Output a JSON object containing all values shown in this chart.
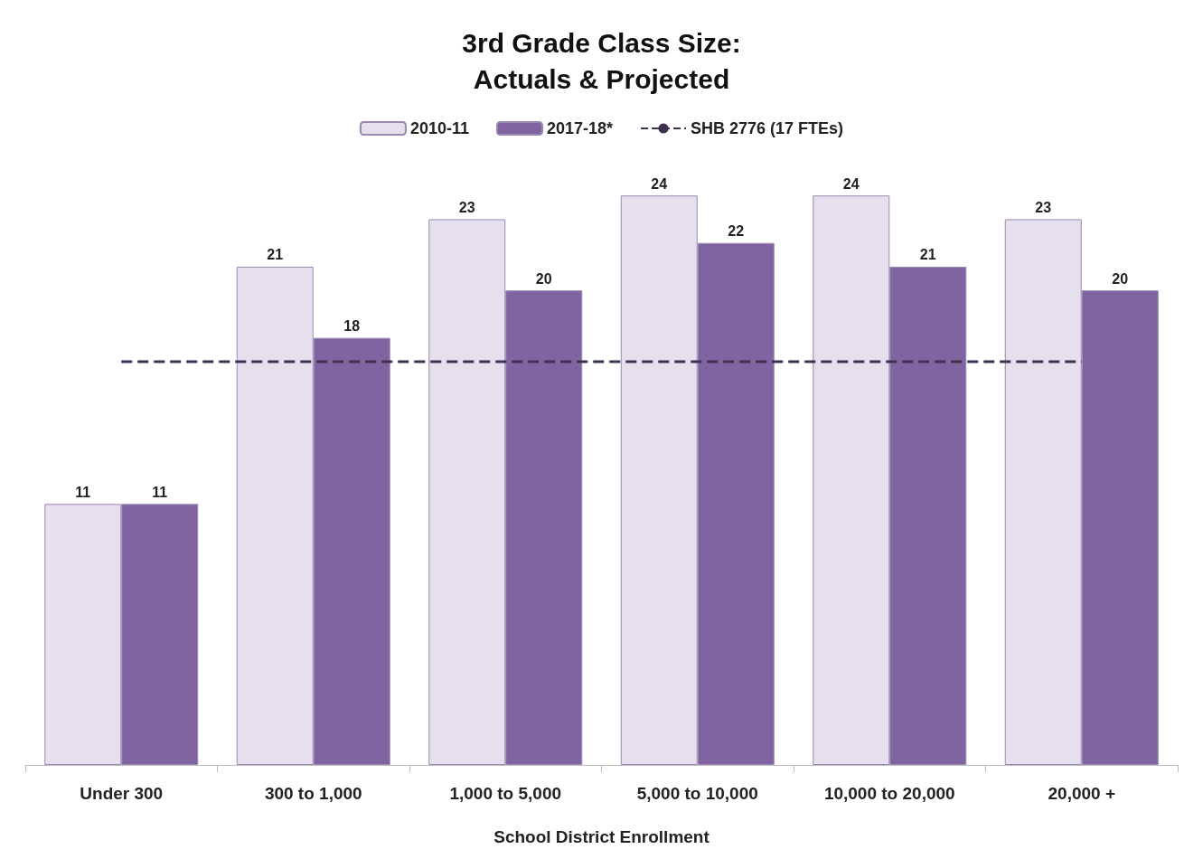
{
  "chart_data": {
    "type": "bar",
    "title": "3rd Grade Class Size:\nActuals & Projected",
    "xlabel": "School District Enrollment",
    "categories": [
      "Under 300",
      "300 to 1,000",
      "1,000 to 5,000",
      "5,000 to 10,000",
      "10,000 to 20,000",
      "20,000 +"
    ],
    "series": [
      {
        "name": "2010-11",
        "color": "#e6dfed",
        "values": [
          11,
          21,
          23,
          24,
          24,
          23
        ],
        "value_labels": [
          "11",
          "21",
          "23",
          "24",
          "24",
          "23"
        ]
      },
      {
        "name": "2017-18*",
        "color": "#8064a2",
        "values": [
          11,
          18,
          20,
          22,
          21,
          20
        ],
        "value_labels": [
          "11",
          "18",
          "20",
          "22",
          "21",
          "20"
        ]
      },
      {
        "name": "SHB 2776 (17 FTEs)",
        "type": "line",
        "color": "#3f3151",
        "line_style": "dashed",
        "marker": "none",
        "values": [
          17,
          17,
          17,
          17,
          17,
          17
        ]
      }
    ],
    "tick_labels": "x",
    "grid": false,
    "legend": "top"
  }
}
